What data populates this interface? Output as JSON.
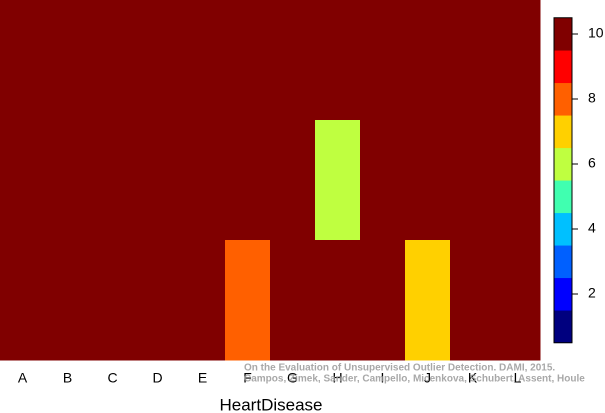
{
  "chart_data": {
    "type": "heatmap",
    "x_label": "HeartDisease",
    "categories": [
      "A",
      "B",
      "C",
      "D",
      "E",
      "F",
      "G",
      "H",
      "I",
      "J",
      "K",
      "L"
    ],
    "values": [
      [
        10,
        10,
        10,
        10,
        10,
        10,
        10,
        10,
        10,
        10,
        10,
        10
      ],
      [
        10,
        10,
        10,
        10,
        10,
        10,
        10,
        6,
        10,
        10,
        10,
        10
      ],
      [
        10,
        10,
        10,
        10,
        10,
        8,
        10,
        10,
        10,
        7,
        10,
        10
      ]
    ],
    "zlim": [
      0.5,
      10.5
    ],
    "zticks": [
      2,
      4,
      6,
      8,
      10
    ],
    "colors": [
      "#00007f",
      "#0000ff",
      "#0060ff",
      "#00c0ff",
      "#40ffb0",
      "#bfff40",
      "#ffd000",
      "#ff6000",
      "#ff0000",
      "#800000"
    ],
    "annotations": [
      "On the Evaluation of Unsupervised Outlier Detection. DAMI, 2015.",
      "Campos, Zimek, Sander, Campello, Micenkova, Schubert, Assent, Houle"
    ]
  }
}
